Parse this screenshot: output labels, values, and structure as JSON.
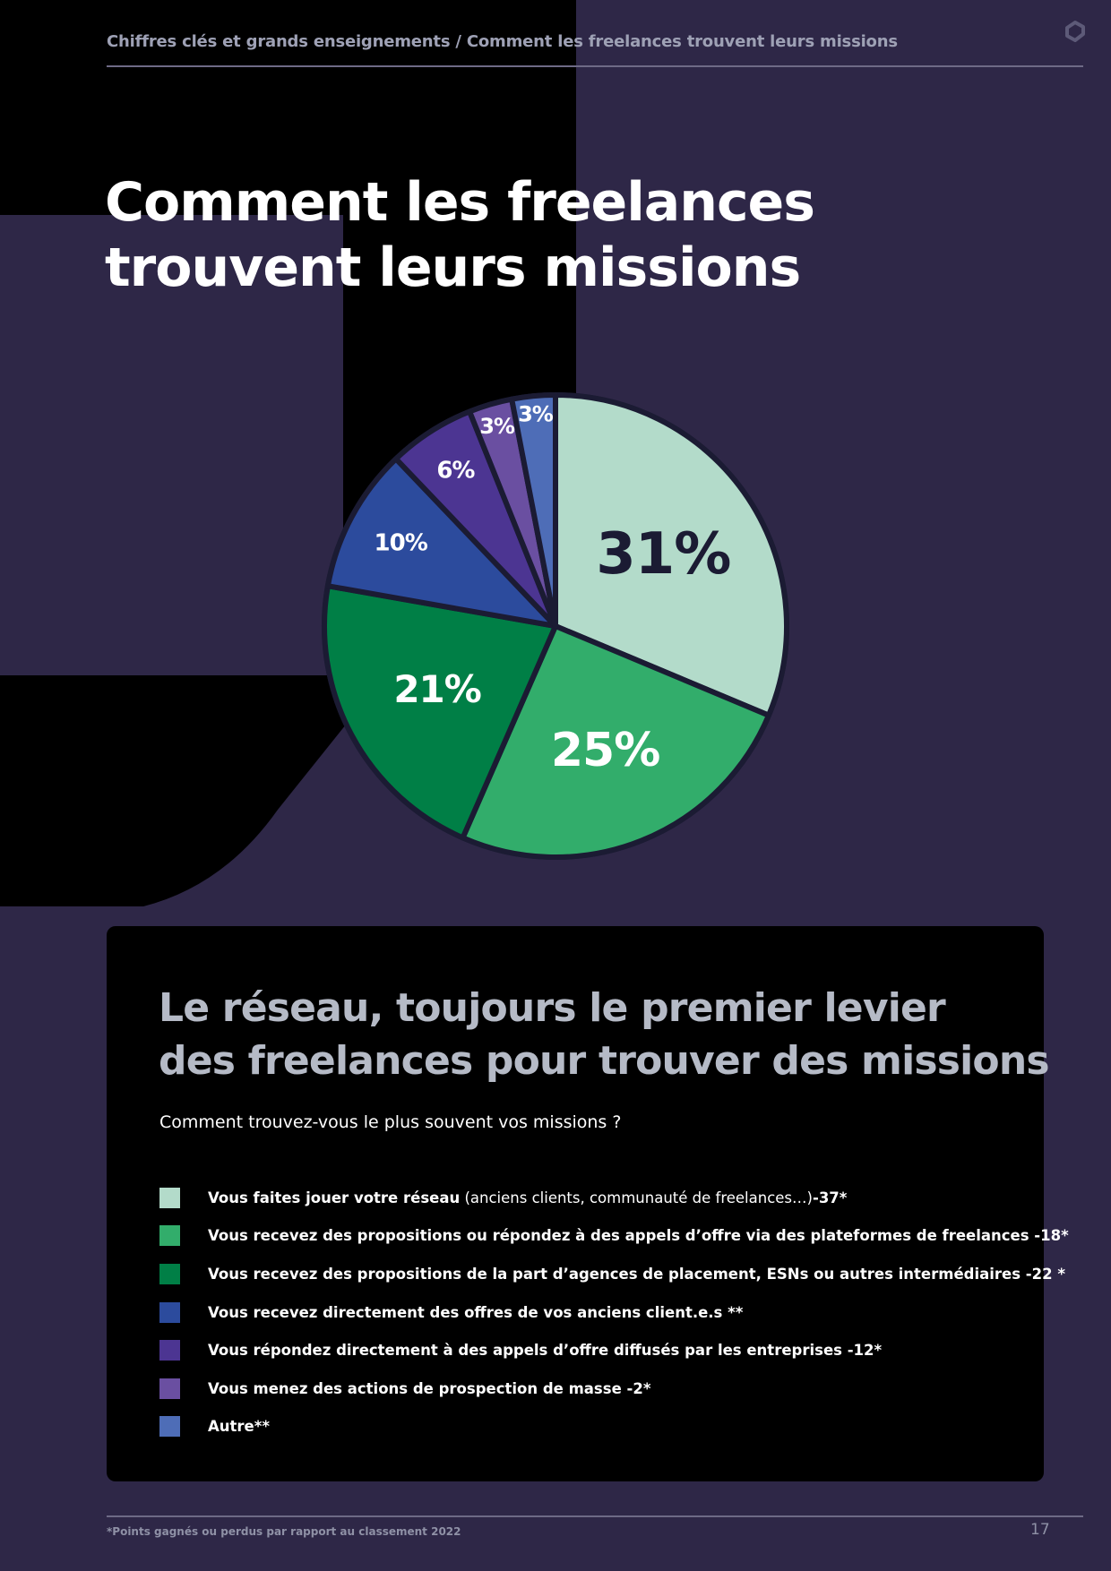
{
  "header": {
    "breadcrumb": "Chiffres clés et grands enseignements  / Comment les freelances trouvent leurs missions"
  },
  "title_line1": "Comment les freelances",
  "title_line2": "trouvent leurs missions",
  "panel": {
    "heading_line1": "Le réseau, toujours le premier levier",
    "heading_line2": "des freelances pour trouver des missions",
    "question": "Comment trouvez-vous le plus souvent vos missions ?",
    "legend": [
      {
        "bold": "Vous faites jouer votre réseau",
        "light": " (anciens clients, communauté de freelances…)",
        "suffix": "-37*",
        "color": "#b3dbca"
      },
      {
        "bold": "Vous recevez des propositions ou répondez à des appels d’offre via des plateformes de freelances -18*",
        "light": "",
        "suffix": "",
        "color": "#32ad6b"
      },
      {
        "bold": "Vous recevez des propositions de la part d’agences de placement, ESNs ou autres intermédiaires  -22 *",
        "light": "",
        "suffix": "",
        "color": "#007f46"
      },
      {
        "bold": "Vous recevez directement des offres de vos anciens client.e.s **",
        "light": "",
        "suffix": "",
        "color": "#2c4b9d"
      },
      {
        "bold": "Vous répondez directement à des appels d’offre diffusés par les entreprises -12*",
        "light": "",
        "suffix": "",
        "color": "#4c3592"
      },
      {
        "bold": "Vous menez des actions de prospection de masse -2*",
        "light": "",
        "suffix": "",
        "color": "#6a4fa1"
      },
      {
        "bold": "Autre**",
        "light": "",
        "suffix": "",
        "color": "#4e6db7"
      }
    ]
  },
  "footer": {
    "footnote": "*Points gagnés ou perdus par rapport au classement 2022",
    "page_number": "17"
  },
  "colors": {
    "background": "#2e2747",
    "panel": "#000000",
    "slice_border": "#1b1b33"
  },
  "chart_data": {
    "type": "pie",
    "title": "",
    "slices": [
      {
        "label": "31%",
        "value": 31,
        "color": "#b3dbca",
        "label_color": "#1b1b33"
      },
      {
        "label": "25%",
        "value": 25,
        "color": "#32ad6b",
        "label_color": "#ffffff"
      },
      {
        "label": "21%",
        "value": 21,
        "color": "#007f46",
        "label_color": "#ffffff"
      },
      {
        "label": "10%",
        "value": 10,
        "color": "#2c4b9d",
        "label_color": "#ffffff"
      },
      {
        "label": "6%",
        "value": 6,
        "color": "#4c3592",
        "label_color": "#ffffff"
      },
      {
        "label": "3%",
        "value": 3,
        "color": "#6a4fa1",
        "label_color": "#ffffff"
      },
      {
        "label": "3%",
        "value": 3,
        "color": "#4e6db7",
        "label_color": "#ffffff"
      }
    ]
  }
}
